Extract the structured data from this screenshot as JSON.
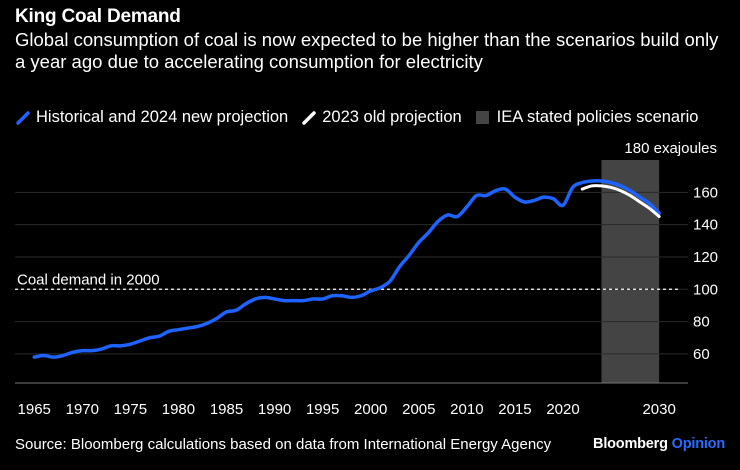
{
  "title": "King Coal Demand",
  "subtitle": "Global consumption of coal is now expected to be higher than the scenarios build only a year ago due to accelerating consumption for electricity",
  "legend": {
    "historical": "Historical and 2024 new projection",
    "old": "2023 old projection",
    "iea": "IEA stated policies scenario"
  },
  "colors": {
    "historical": "#1f63ff",
    "old": "#ffffff",
    "iea": "#444444",
    "background": "#000000"
  },
  "source": "Source: Bloomberg calculations based on data from International Energy Agency",
  "brand": {
    "name": "Bloomberg",
    "accent": "Opinion"
  },
  "chart_data": {
    "type": "line",
    "title": "King Coal Demand",
    "ylabel": "exajoules",
    "ylim": [
      42,
      180
    ],
    "xlim": [
      1963,
      2033
    ],
    "y_ticks": [
      60,
      80,
      100,
      120,
      140,
      160
    ],
    "y_top_label": "180 exajoules",
    "x_ticks": [
      1965,
      1970,
      1975,
      1980,
      1985,
      1990,
      1995,
      2000,
      2005,
      2010,
      2015,
      2020,
      2030
    ],
    "shaded_region": {
      "label": "IEA stated policies scenario",
      "x": [
        2024,
        2030
      ]
    },
    "reference_line": {
      "y": 100,
      "label": "Coal demand in 2000"
    },
    "series": [
      {
        "name": "Historical and 2024 new projection",
        "x": [
          1965,
          1966,
          1967,
          1968,
          1969,
          1970,
          1971,
          1972,
          1973,
          1974,
          1975,
          1976,
          1977,
          1978,
          1979,
          1980,
          1981,
          1982,
          1983,
          1984,
          1985,
          1986,
          1987,
          1988,
          1989,
          1990,
          1991,
          1992,
          1993,
          1994,
          1995,
          1996,
          1997,
          1998,
          1999,
          2000,
          2001,
          2002,
          2003,
          2004,
          2005,
          2006,
          2007,
          2008,
          2009,
          2010,
          2011,
          2012,
          2013,
          2014,
          2015,
          2016,
          2017,
          2018,
          2019,
          2020,
          2021,
          2022,
          2023,
          2024,
          2025,
          2026,
          2027,
          2028,
          2029,
          2030
        ],
        "values": [
          58,
          59,
          58,
          59,
          61,
          62,
          62,
          63,
          65,
          65,
          66,
          68,
          70,
          71,
          74,
          75,
          76,
          77,
          79,
          82,
          86,
          87,
          91,
          94,
          95,
          94,
          93,
          93,
          93,
          94,
          94,
          96,
          96,
          95,
          96,
          99,
          101,
          105,
          114,
          121,
          129,
          135,
          142,
          146,
          145,
          151,
          158,
          158,
          161,
          162,
          157,
          154,
          155,
          157,
          156,
          152,
          163,
          166,
          167,
          167,
          166,
          164,
          161,
          157,
          153,
          147
        ]
      },
      {
        "name": "2023 old projection",
        "x": [
          2022,
          2023,
          2024,
          2025,
          2026,
          2027,
          2028,
          2029,
          2030
        ],
        "values": [
          162,
          164,
          164,
          163,
          161,
          158,
          154,
          150,
          145
        ]
      }
    ]
  }
}
